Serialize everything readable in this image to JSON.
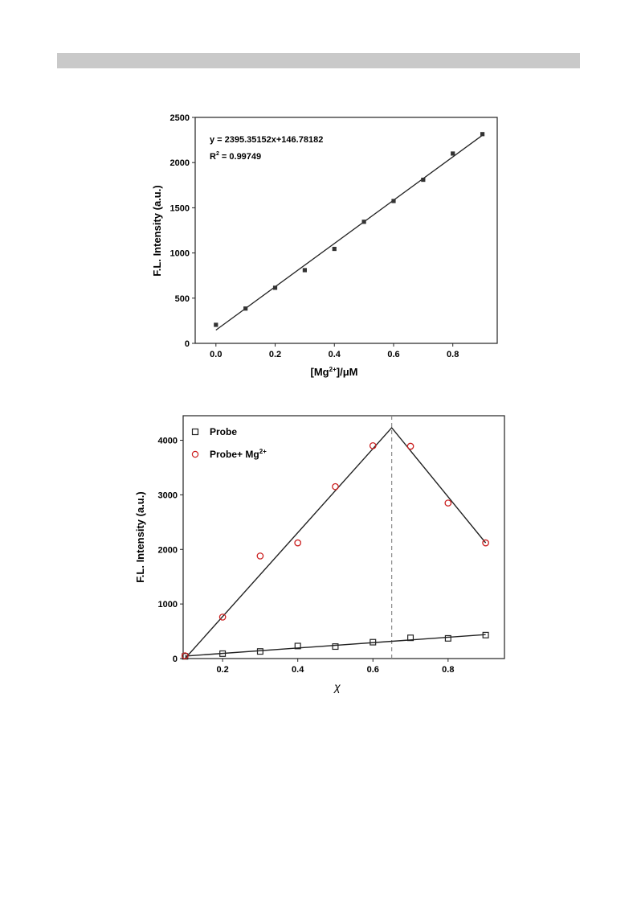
{
  "chart_data": [
    {
      "type": "scatter",
      "xlabel_main": "[Mg",
      "xlabel_sup": "2+",
      "xlabel_tail": "]/μM",
      "ylabel": "F.L. Intensity (a.u.)",
      "xlim": [
        -0.07,
        0.95
      ],
      "ylim": [
        0,
        2500
      ],
      "xticks": [
        0.0,
        0.2,
        0.4,
        0.6,
        0.8
      ],
      "xtick_labels": [
        "0.0",
        "0.2",
        "0.4",
        "0.6",
        "0.8"
      ],
      "yticks": [
        0,
        500,
        1000,
        1500,
        2000,
        2500
      ],
      "ytick_labels": [
        "0",
        "500",
        "1000",
        "1500",
        "2000",
        "2500"
      ],
      "equation": "y = 2395.35152x+146.78182",
      "r2_main": "R",
      "r2_sup": "2",
      "r2_tail": " = 0.99749",
      "fit": {
        "slope": 2395.35152,
        "intercept": 146.78182,
        "x_range": [
          0.0,
          0.9
        ]
      },
      "marker_color": "#333333",
      "series": [
        {
          "x": [
            0.0,
            0.1,
            0.2,
            0.3,
            0.4,
            0.5,
            0.6,
            0.7,
            0.8,
            0.9
          ],
          "y": [
            205,
            385,
            615,
            810,
            1045,
            1345,
            1575,
            1810,
            2100,
            2315
          ]
        }
      ]
    },
    {
      "type": "scatter",
      "xlabel": "χ",
      "ylabel": "F.L. Intensity (a.u.)",
      "xlim": [
        0.095,
        0.95
      ],
      "ylim": [
        0,
        4450
      ],
      "xticks": [
        0.2,
        0.4,
        0.6,
        0.8
      ],
      "xtick_labels": [
        "0.2",
        "0.4",
        "0.6",
        "0.8"
      ],
      "yticks": [
        0,
        1000,
        2000,
        3000,
        4000
      ],
      "ytick_labels": [
        "0",
        "1000",
        "2000",
        "3000",
        "4000"
      ],
      "legend_position": "top-left",
      "vline_x": 0.65,
      "series": [
        {
          "name": "Probe",
          "marker": "square",
          "color": "#222222",
          "x": [
            0.1,
            0.2,
            0.3,
            0.4,
            0.5,
            0.6,
            0.7,
            0.8,
            0.9
          ],
          "y": [
            40,
            90,
            130,
            230,
            220,
            300,
            380,
            370,
            430
          ],
          "fit": [
            [
              0.1,
              45
            ],
            [
              0.9,
              440
            ]
          ]
        },
        {
          "name": "Probe+ Mg",
          "name_sup": "2+",
          "marker": "circle",
          "color": "#cc2222",
          "x": [
            0.1,
            0.2,
            0.3,
            0.4,
            0.5,
            0.6,
            0.7,
            0.8,
            0.9
          ],
          "y": [
            50,
            760,
            1880,
            2120,
            3150,
            3900,
            3890,
            2850,
            2120
          ],
          "fit": [
            [
              0.1,
              0
            ],
            [
              0.65,
              4230
            ],
            [
              0.9,
              2120
            ]
          ]
        }
      ]
    }
  ]
}
